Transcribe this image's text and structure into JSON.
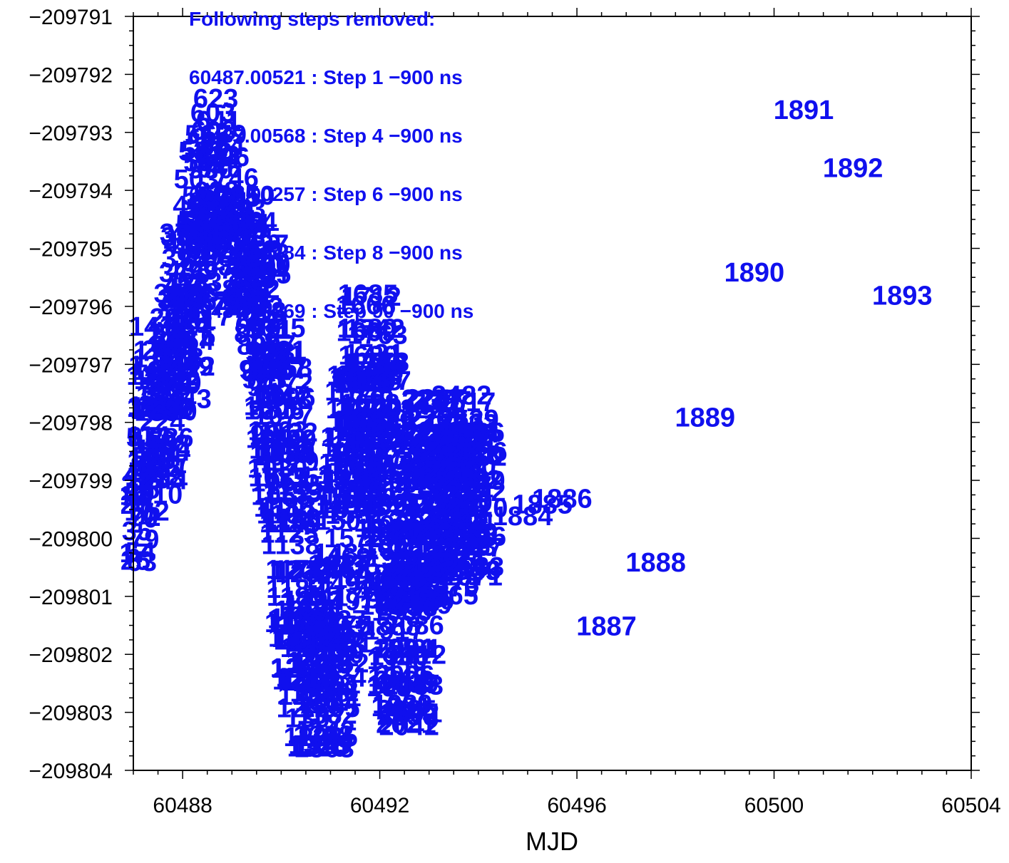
{
  "chart_data": {
    "type": "scatter",
    "title": "",
    "xlabel": "MJD",
    "ylabel": "",
    "xlim": [
      60487,
      60504
    ],
    "ylim": [
      -209804,
      -209791
    ],
    "xticks": [
      60488,
      60492,
      60496,
      60500,
      60504
    ],
    "yticks": [
      -209791,
      -209792,
      -209793,
      -209794,
      -209795,
      -209796,
      -209797,
      -209798,
      -209799,
      -209800,
      -209801,
      -209802,
      -209803,
      -209804
    ],
    "x_tick_labels": [
      "60488",
      "60492",
      "60496",
      "60500",
      "60504"
    ],
    "y_tick_labels": [
      "−209791",
      "−209792",
      "−209793",
      "−209794",
      "−209795",
      "−209796",
      "−209797",
      "−209798",
      "−209799",
      "−209800",
      "−209801",
      "−209802",
      "−209803",
      "−209804"
    ],
    "grid": false,
    "point_color": "#1010ee",
    "labeled_points": [
      {
        "label": "1142",
        "x": 60490.9,
        "y": -209803.3
      },
      {
        "label": "1692",
        "x": 60492.6,
        "y": -209803.0
      },
      {
        "label": "1856",
        "x": 60493.5,
        "y": -209798.0
      },
      {
        "label": "1884",
        "x": 60494.9,
        "y": -209799.6
      },
      {
        "label": "1885",
        "x": 60495.3,
        "y": -209799.4
      },
      {
        "label": "1886",
        "x": 60495.7,
        "y": -209799.3
      },
      {
        "label": "1887",
        "x": 60496.6,
        "y": -209801.5
      },
      {
        "label": "1888",
        "x": 60497.6,
        "y": -209800.4
      },
      {
        "label": "1889",
        "x": 60498.6,
        "y": -209797.9
      },
      {
        "label": "1890",
        "x": 60499.6,
        "y": -209795.4
      },
      {
        "label": "1891",
        "x": 60500.6,
        "y": -209792.6
      },
      {
        "label": "1892",
        "x": 60501.6,
        "y": -209793.6
      },
      {
        "label": "1893",
        "x": 60502.6,
        "y": -209795.8
      }
    ],
    "annotation_lines": [
      "Following steps removed:",
      "60487.00521 : Step 1 −900 ns",
      "60487.00568 : Step 4 −900 ns",
      "60487.00257 : Step 6 −900 ns",
      "60487.00284 : Step 8 −900 ns",
      "60487.00269 : Step 90 −900 ns"
    ]
  }
}
